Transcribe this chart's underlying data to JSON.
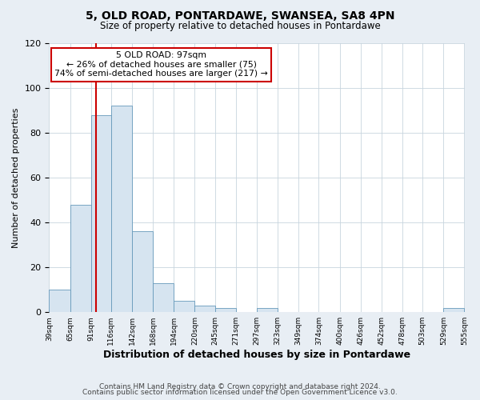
{
  "title": "5, OLD ROAD, PONTARDAWE, SWANSEA, SA8 4PN",
  "subtitle": "Size of property relative to detached houses in Pontardawe",
  "xlabel": "Distribution of detached houses by size in Pontardawe",
  "ylabel": "Number of detached properties",
  "bin_edges": [
    39,
    65,
    91,
    116,
    142,
    168,
    194,
    220,
    245,
    271,
    297,
    323,
    349,
    374,
    400,
    426,
    452,
    478,
    503,
    529,
    555
  ],
  "bin_counts": [
    10,
    48,
    88,
    92,
    36,
    13,
    5,
    3,
    2,
    0,
    2,
    0,
    0,
    0,
    0,
    0,
    0,
    0,
    0,
    2
  ],
  "bar_color": "#d6e4f0",
  "bar_edge_color": "#6699bb",
  "property_size": 97,
  "annotation_line1": "5 OLD ROAD: 97sqm",
  "annotation_line2": "← 26% of detached houses are smaller (75)",
  "annotation_line3": "74% of semi-detached houses are larger (217) →",
  "annotation_box_color": "#ffffff",
  "annotation_box_edge_color": "#cc0000",
  "vline_color": "#cc0000",
  "ylim": [
    0,
    120
  ],
  "yticks": [
    0,
    20,
    40,
    60,
    80,
    100,
    120
  ],
  "tick_labels": [
    "39sqm",
    "65sqm",
    "91sqm",
    "116sqm",
    "142sqm",
    "168sqm",
    "194sqm",
    "220sqm",
    "245sqm",
    "271sqm",
    "297sqm",
    "323sqm",
    "349sqm",
    "374sqm",
    "400sqm",
    "426sqm",
    "452sqm",
    "478sqm",
    "503sqm",
    "529sqm",
    "555sqm"
  ],
  "footer1": "Contains HM Land Registry data © Crown copyright and database right 2024.",
  "footer2": "Contains public sector information licensed under the Open Government Licence v3.0.",
  "background_color": "#e8eef4",
  "plot_background_color": "#ffffff",
  "grid_color": "#c8d4de"
}
